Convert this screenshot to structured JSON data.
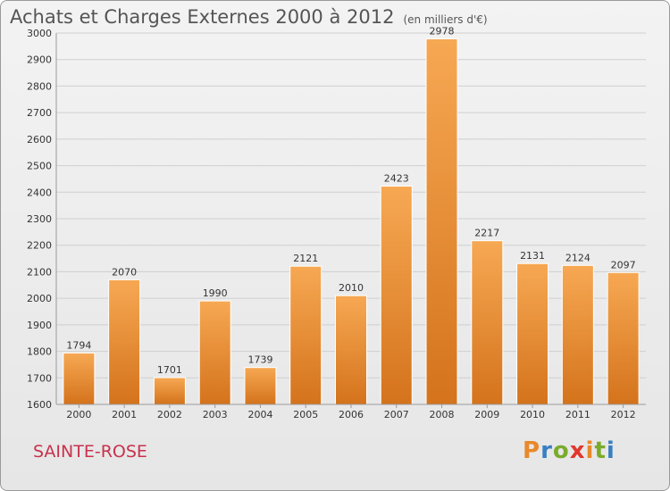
{
  "header": {
    "title": "Achats et Charges Externes 2000 à 2012",
    "subtitle": "(en milliers d'€)"
  },
  "footer": {
    "town": "SAINTE-ROSE",
    "logo": "Proxiti"
  },
  "colors": {
    "bar_top": "#f7a853",
    "bar_bottom": "#d4731c",
    "logo_letters": [
      "#e8892a",
      "#3a7fc0",
      "#7aab2c",
      "#e1372c",
      "#e8892a",
      "#7aab2c",
      "#3a7fc0"
    ]
  },
  "chart_data": {
    "type": "bar",
    "title": "Achats et Charges Externes 2000 à 2012",
    "subtitle": "(en milliers d'€)",
    "categories": [
      "2000",
      "2001",
      "2002",
      "2003",
      "2004",
      "2005",
      "2006",
      "2007",
      "2008",
      "2009",
      "2010",
      "2011",
      "2012"
    ],
    "values": [
      1794,
      2070,
      1701,
      1990,
      1739,
      2121,
      2010,
      2423,
      2978,
      2217,
      2131,
      2124,
      2097
    ],
    "ylim": [
      1600,
      3000
    ],
    "yticks": [
      1600,
      1700,
      1800,
      1900,
      2000,
      2100,
      2200,
      2300,
      2400,
      2500,
      2600,
      2700,
      2800,
      2900,
      3000
    ],
    "grid": true
  }
}
